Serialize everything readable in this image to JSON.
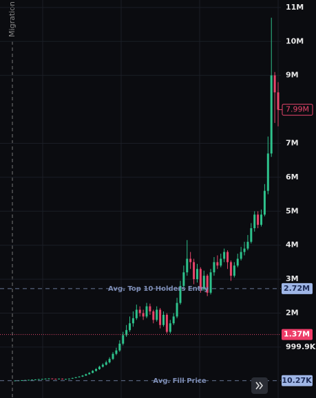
{
  "chart_data": {
    "type": "candlestick",
    "annotation": "Migration",
    "ylim": [
      -500000,
      11220000
    ],
    "yticks": [
      {
        "value": 999900,
        "label": "999.9K"
      },
      {
        "value": 2000000,
        "label": "2M"
      },
      {
        "value": 3000000,
        "label": "3M"
      },
      {
        "value": 4000000,
        "label": "4M"
      },
      {
        "value": 5000000,
        "label": "5M"
      },
      {
        "value": 6000000,
        "label": "6M"
      },
      {
        "value": 7000000,
        "label": "7M"
      },
      {
        "value": 9000000,
        "label": "9M"
      },
      {
        "value": 10000000,
        "label": "10M"
      },
      {
        "value": 11000000,
        "label": "11M"
      }
    ],
    "grid": true,
    "up_color": "#2ec28c",
    "down_color": "#e8456b",
    "open": [
      10000,
      15000,
      20000,
      25000,
      30000,
      35000,
      40000,
      45000,
      55000,
      60000,
      70000,
      75000,
      65000,
      60000,
      70000,
      55000,
      60000,
      70000,
      90000,
      110000,
      130000,
      160000,
      200000,
      240000,
      300000,
      350000,
      420000,
      480000,
      550000,
      650000,
      800000,
      900000,
      1100000,
      1350000,
      1500000,
      1700000,
      1850000,
      2100000,
      2000000,
      1900000,
      2200000,
      2050000,
      1800000,
      2100000,
      1650000,
      1950000,
      1450000,
      1700000,
      1900000,
      2300000,
      2800000,
      3200000,
      3600000,
      3500000,
      3000000,
      3300000,
      2700000,
      3100000,
      2600000,
      3200000,
      3500000,
      3400000,
      3600000,
      3800000,
      3500000,
      3100000,
      3400000,
      3600000,
      3800000,
      3900000,
      4100000,
      4500000,
      4900000,
      4600000,
      4900000,
      5600000,
      6700000,
      9000000,
      8500000
    ],
    "high": [
      18000,
      22000,
      28000,
      33000,
      38000,
      44000,
      50000,
      60000,
      66000,
      76000,
      82000,
      78000,
      70000,
      74000,
      72000,
      64000,
      75000,
      95000,
      118000,
      140000,
      175000,
      215000,
      260000,
      320000,
      380000,
      450000,
      520000,
      600000,
      700000,
      850000,
      980000,
      1200000,
      1450000,
      1650000,
      1900000,
      2050000,
      2250000,
      2200000,
      2100000,
      2300000,
      2280000,
      2100000,
      2200000,
      2150000,
      2050000,
      2000000,
      1800000,
      2000000,
      2450000,
      2950000,
      3400000,
      4150000,
      3800000,
      3600000,
      3450000,
      3350000,
      3250000,
      3150000,
      3300000,
      3650000,
      3700000,
      3750000,
      3900000,
      3850000,
      3550000,
      3500000,
      3750000,
      3950000,
      4100000,
      4300000,
      4650000,
      5000000,
      5000000,
      5050000,
      5800000,
      7200000,
      10700000,
      9100000,
      8800000
    ],
    "low": [
      8000,
      13000,
      18000,
      22000,
      28000,
      32000,
      38000,
      42000,
      50000,
      56000,
      66000,
      60000,
      55000,
      56000,
      50000,
      50000,
      56000,
      66000,
      85000,
      105000,
      120000,
      150000,
      190000,
      230000,
      280000,
      330000,
      400000,
      460000,
      520000,
      620000,
      760000,
      860000,
      1050000,
      1300000,
      1450000,
      1600000,
      1800000,
      1900000,
      1800000,
      1850000,
      1950000,
      1700000,
      1750000,
      1550000,
      1600000,
      1400000,
      1400000,
      1650000,
      1850000,
      2250000,
      2700000,
      3100000,
      3300000,
      2850000,
      2900000,
      2600000,
      2650000,
      2500000,
      2550000,
      3100000,
      3300000,
      3350000,
      3500000,
      3300000,
      2950000,
      3050000,
      3350000,
      3550000,
      3700000,
      3850000,
      4050000,
      4400000,
      4500000,
      4550000,
      4850000,
      5500000,
      6600000,
      7600000,
      7500000
    ],
    "close": [
      15000,
      20000,
      25000,
      30000,
      35000,
      40000,
      45000,
      55000,
      60000,
      70000,
      75000,
      65000,
      60000,
      70000,
      55000,
      60000,
      70000,
      90000,
      110000,
      130000,
      160000,
      200000,
      240000,
      300000,
      350000,
      420000,
      480000,
      550000,
      650000,
      800000,
      900000,
      1100000,
      1350000,
      1500000,
      1700000,
      1850000,
      2100000,
      2000000,
      1900000,
      2200000,
      2050000,
      1800000,
      2100000,
      1650000,
      1950000,
      1450000,
      1700000,
      1900000,
      2300000,
      2800000,
      3200000,
      3600000,
      3500000,
      3000000,
      3300000,
      2700000,
      3100000,
      2600000,
      3200000,
      3500000,
      3400000,
      3600000,
      3800000,
      3500000,
      3100000,
      3400000,
      3600000,
      3800000,
      3900000,
      4100000,
      4500000,
      4900000,
      4600000,
      4900000,
      5600000,
      6700000,
      9000000,
      8500000,
      7990000
    ],
    "price_lines": [
      {
        "value": 2720000,
        "value_label": "2.72M",
        "label": "Avg. Top 10 Holders Entry",
        "style": "dashed",
        "color": "#6b7a99"
      },
      {
        "value": 1370000,
        "value_label": "1.37M",
        "style": "dotted",
        "color": "#e8456b"
      },
      {
        "value": 10270,
        "value_label": "10.27K",
        "label": "Avg. Fill Price",
        "style": "dashed",
        "color": "#6b7a99"
      }
    ],
    "last_price": {
      "value": 7990000,
      "value_label": "7.99M"
    }
  }
}
